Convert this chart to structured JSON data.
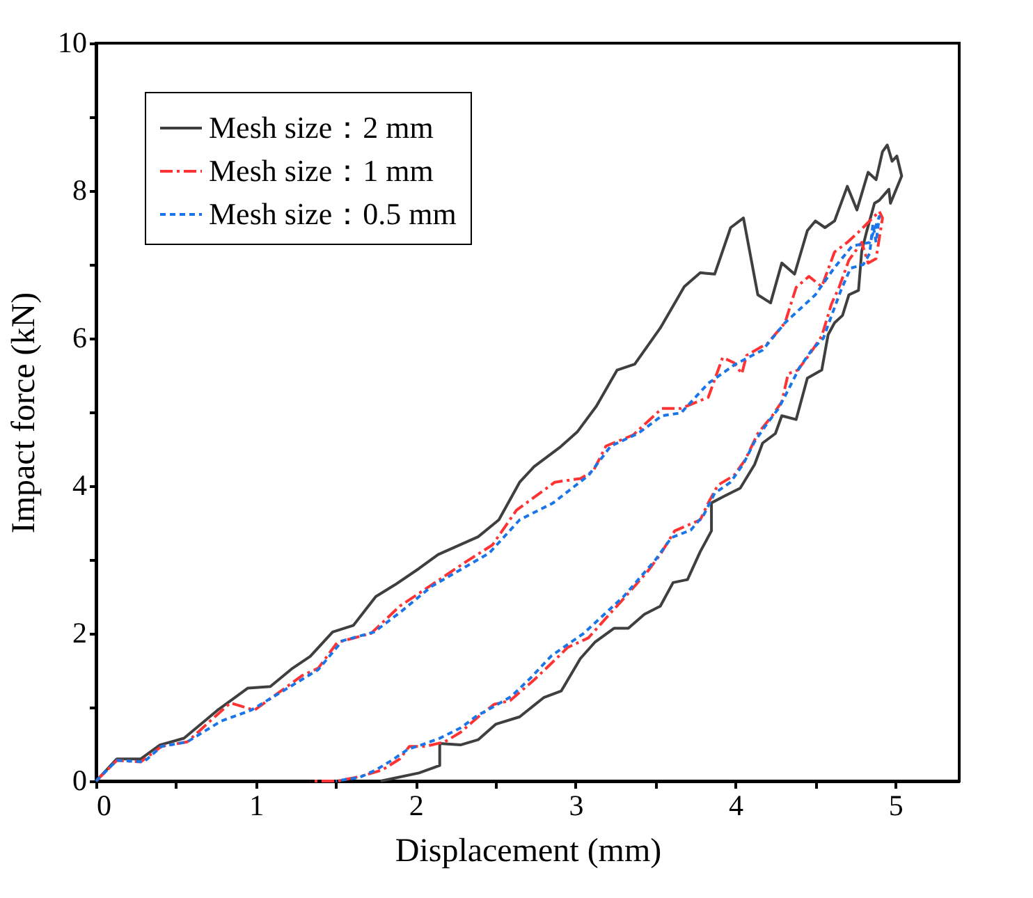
{
  "chart_data": {
    "type": "line",
    "xlabel": "Displacement (mm)",
    "ylabel": "Impact force (kN)",
    "xlim": [
      0,
      5.4
    ],
    "ylim": [
      0,
      10
    ],
    "xticks": [
      0,
      {
        "value": 0.5,
        "label": null
      },
      1,
      {
        "value": 1.5,
        "label": null
      },
      2,
      {
        "value": 2.5,
        "label": null
      },
      3,
      {
        "value": 3.5,
        "label": null
      },
      4,
      {
        "value": 4.5,
        "label": null
      },
      5
    ],
    "yticks": [
      0,
      {
        "value": 1,
        "label": null
      },
      2,
      {
        "value": 3,
        "label": null
      },
      4,
      {
        "value": 5,
        "label": null
      },
      6,
      {
        "value": 7,
        "label": null
      },
      8,
      {
        "value": 9,
        "label": null
      },
      10
    ],
    "grid": false,
    "legend": "top left",
    "marker": "none",
    "series": [
      {
        "name": "Mesh size：2 mm",
        "color": "#3f3f3f",
        "line_style": "solid",
        "x": [
          0,
          0.13,
          0.28,
          0.4,
          0.55,
          0.76,
          0.95,
          1.09,
          1.23,
          1.34,
          1.48,
          1.61,
          1.75,
          1.87,
          2.02,
          2.14,
          2.39,
          2.52,
          2.65,
          2.74,
          2.9,
          3.01,
          3.13,
          3.26,
          3.37,
          3.53,
          3.68,
          3.78,
          3.87,
          3.97,
          4.05,
          4.14,
          4.22,
          4.29,
          4.37,
          4.45,
          4.5,
          4.56,
          4.62,
          4.7,
          4.76,
          4.83,
          4.88,
          4.92,
          4.95,
          4.98,
          5.01,
          5.04,
          4.97,
          4.96,
          4.9,
          4.87,
          4.82,
          4.79,
          4.77,
          4.71,
          4.67,
          4.62,
          4.58,
          4.54,
          4.45,
          4.38,
          4.29,
          4.25,
          4.17,
          4.12,
          4.03,
          3.93,
          3.85,
          3.85,
          3.78,
          3.7,
          3.61,
          3.53,
          3.43,
          3.33,
          3.24,
          3.12,
          3.03,
          2.91,
          2.8,
          2.65,
          2.5,
          2.39,
          2.28,
          2.15,
          2.15,
          2.02,
          1.78
        ],
        "values": [
          0,
          0.3,
          0.3,
          0.49,
          0.58,
          0.96,
          1.26,
          1.28,
          1.53,
          1.69,
          2.02,
          2.11,
          2.5,
          2.66,
          2.88,
          3.07,
          3.31,
          3.54,
          4.05,
          4.26,
          4.52,
          4.73,
          5.08,
          5.57,
          5.65,
          6.14,
          6.7,
          6.89,
          6.87,
          7.5,
          7.63,
          6.59,
          6.48,
          7.02,
          6.87,
          7.46,
          7.59,
          7.5,
          7.59,
          8.06,
          7.74,
          8.25,
          8.15,
          8.53,
          8.62,
          8.4,
          8.47,
          8.2,
          7.83,
          8.02,
          7.87,
          7.83,
          7.44,
          7.18,
          6.65,
          6.59,
          6.31,
          6.21,
          6.05,
          5.57,
          5.46,
          4.9,
          4.95,
          4.71,
          4.58,
          4.29,
          3.97,
          3.86,
          3.77,
          3.39,
          3.11,
          2.73,
          2.69,
          2.37,
          2.26,
          2.07,
          2.07,
          1.88,
          1.66,
          1.22,
          1.13,
          0.87,
          0.77,
          0.56,
          0.49,
          0.51,
          0.21,
          0.11,
          0
        ]
      },
      {
        "name": "Mesh size：1 mm",
        "color": "#ff3333",
        "line_style": "dashed",
        "x": [
          0,
          0.13,
          0.28,
          0.41,
          0.57,
          0.84,
          0.99,
          1.29,
          1.39,
          1.51,
          1.72,
          1.9,
          2.1,
          2.32,
          2.48,
          2.63,
          2.87,
          3.03,
          3.11,
          3.19,
          3.36,
          3.54,
          3.66,
          3.83,
          3.92,
          3.99,
          4.04,
          4.07,
          4.2,
          4.31,
          4.38,
          4.46,
          4.54,
          4.62,
          4.7,
          4.77,
          4.9,
          4.92,
          4.88,
          4.83,
          4.79,
          4.71,
          4.65,
          4.6,
          4.54,
          4.46,
          4.39,
          4.33,
          4.29,
          4.23,
          4.14,
          4.06,
          3.99,
          3.89,
          3.83,
          3.78,
          3.62,
          3.53,
          3.45,
          3.3,
          3.22,
          3.08,
          2.95,
          2.88,
          2.74,
          2.59,
          2.49,
          2.38,
          2.28,
          2.18,
          2.06,
          1.96,
          1.9,
          1.79,
          1.65,
          1.51,
          1.34
        ],
        "values": [
          0,
          0.28,
          0.26,
          0.47,
          0.53,
          1.06,
          0.96,
          1.43,
          1.53,
          1.88,
          2.0,
          2.37,
          2.66,
          2.98,
          3.2,
          3.67,
          4.05,
          4.1,
          4.2,
          4.54,
          4.69,
          5.05,
          5.05,
          5.2,
          5.74,
          5.67,
          5.52,
          5.77,
          5.93,
          6.21,
          6.69,
          6.84,
          6.7,
          7.17,
          7.3,
          7.44,
          7.72,
          7.63,
          7.08,
          7.02,
          7.3,
          7.06,
          6.7,
          6.46,
          6.03,
          5.77,
          5.57,
          5.52,
          5.14,
          4.95,
          4.71,
          4.35,
          4.14,
          4.01,
          3.77,
          3.54,
          3.39,
          3.07,
          2.84,
          2.47,
          2.28,
          1.94,
          1.81,
          1.66,
          1.37,
          1.09,
          1.04,
          0.85,
          0.66,
          0.53,
          0.47,
          0.47,
          0.3,
          0.15,
          0.06,
          0,
          0
        ]
      },
      {
        "name": "Mesh size：0.5 mm",
        "color": "#1a75e8",
        "line_style": "dotted",
        "x": [
          0,
          0.13,
          0.3,
          0.41,
          0.57,
          0.78,
          0.97,
          1.39,
          1.54,
          1.74,
          1.91,
          2.1,
          2.46,
          2.65,
          2.86,
          3.08,
          3.22,
          3.39,
          3.54,
          3.66,
          3.83,
          4.0,
          4.17,
          4.31,
          4.5,
          4.62,
          4.73,
          4.84,
          4.9,
          4.88,
          4.86,
          4.84,
          4.8,
          4.72,
          4.66,
          4.6,
          4.55,
          4.48,
          4.4,
          4.33,
          4.27,
          4.2,
          4.12,
          4.05,
          3.97,
          3.87,
          3.8,
          3.72,
          3.6,
          3.5,
          3.4,
          3.3,
          3.2,
          3.05,
          2.95,
          2.85,
          2.72,
          2.6,
          2.48,
          2.38,
          2.28,
          2.15,
          2.05,
          1.95,
          1.85,
          1.75,
          1.65,
          1.5
        ],
        "values": [
          0,
          0.28,
          0.26,
          0.47,
          0.53,
          0.81,
          0.96,
          1.51,
          1.9,
          2.02,
          2.3,
          2.64,
          3.09,
          3.54,
          3.77,
          4.14,
          4.54,
          4.71,
          4.95,
          4.99,
          5.39,
          5.65,
          5.84,
          6.21,
          6.59,
          6.96,
          7.25,
          7.3,
          7.65,
          7.3,
          7.55,
          7.15,
          7.0,
          6.95,
          6.65,
          6.3,
          6.0,
          5.85,
          5.6,
          5.3,
          5.05,
          4.85,
          4.6,
          4.3,
          4.05,
          3.9,
          3.6,
          3.4,
          3.3,
          3.0,
          2.75,
          2.5,
          2.3,
          2.0,
          1.85,
          1.7,
          1.4,
          1.15,
          1.0,
          0.88,
          0.72,
          0.58,
          0.5,
          0.43,
          0.28,
          0.15,
          0.05,
          0
        ]
      }
    ]
  }
}
